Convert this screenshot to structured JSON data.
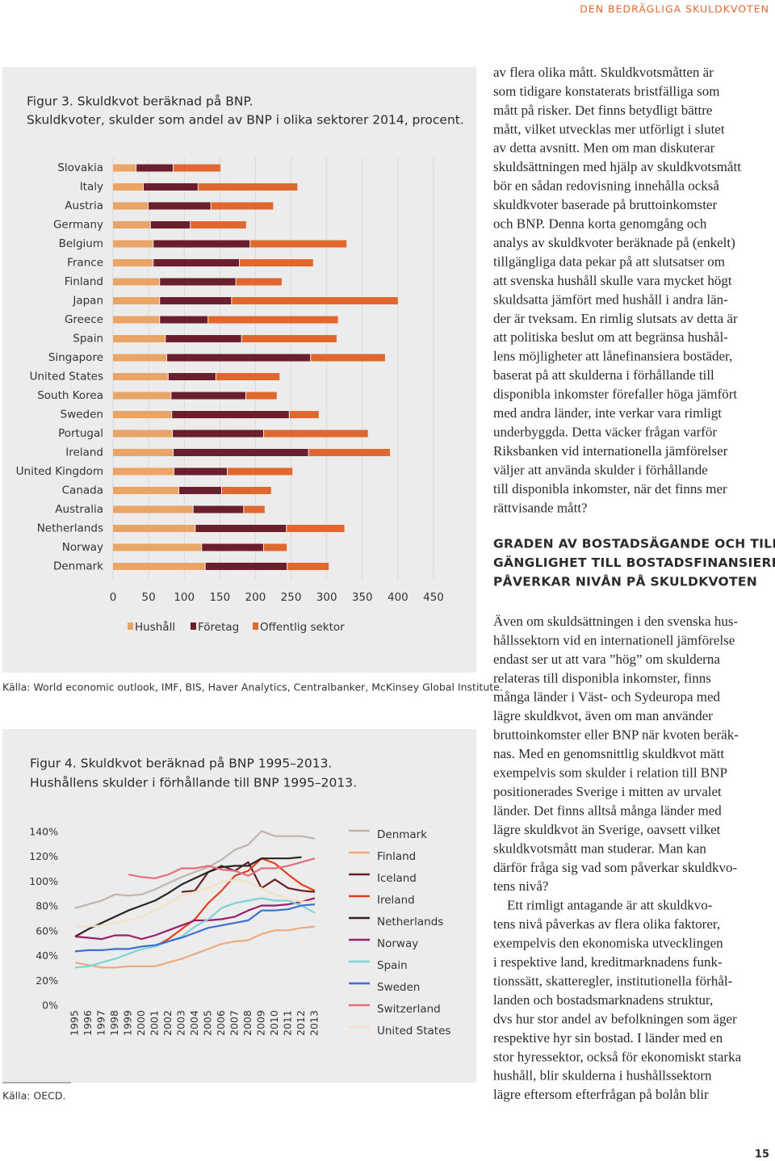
{
  "header": "DEN BEDRÄGLIGA SKULDKVOTEN",
  "page_number": "15",
  "chart_data": [
    {
      "type": "bar",
      "orientation": "horizontal",
      "stacked": true,
      "grid": true,
      "legend": "bottom",
      "title": "Figur 3. Skuldkvot beräknad på BNP.",
      "subtitle": "Skuldkvoter, skulder som andel av BNP i olika sektorer 2014, procent.",
      "source": "Källa: World economic outlook, IMF, BIS, Haver Analytics, Centralbanker, McKinsey Global Institute.",
      "categories": [
        "Slovakia",
        "Italy",
        "Austria",
        "Germany",
        "Belgium",
        "France",
        "Finland",
        "Japan",
        "Greece",
        "Spain",
        "Singapore",
        "United States",
        "South Korea",
        "Sweden",
        "Portugal",
        "Ireland",
        "United Kingdom",
        "Canada",
        "Australia",
        "Netherlands",
        "Norway",
        "Denmark"
      ],
      "series": [
        {
          "name": "Hushåll",
          "color": "#e9a466",
          "values": [
            33,
            43,
            50,
            53,
            57,
            57,
            66,
            66,
            66,
            74,
            76,
            78,
            82,
            83,
            84,
            85,
            86,
            93,
            113,
            116,
            125,
            130
          ]
        },
        {
          "name": "Företag",
          "color": "#6b1e2b",
          "values": [
            52,
            77,
            88,
            56,
            136,
            121,
            107,
            101,
            68,
            107,
            202,
            67,
            105,
            165,
            128,
            190,
            75,
            60,
            71,
            128,
            87,
            115
          ]
        },
        {
          "name": "Offentlig sektor",
          "color": "#e0682f",
          "values": [
            67,
            140,
            88,
            79,
            136,
            104,
            65,
            234,
            183,
            134,
            105,
            90,
            44,
            42,
            147,
            115,
            92,
            70,
            30,
            82,
            33,
            59
          ]
        }
      ],
      "xlim": [
        0,
        450
      ],
      "xticks": [
        0,
        50,
        100,
        150,
        200,
        250,
        300,
        350,
        400,
        450
      ]
    },
    {
      "type": "line",
      "grid": false,
      "legend": "right",
      "title": "Figur 4. Skuldkvot beräknad på BNP 1995–2013.",
      "subtitle": "Hushållens skulder i förhållande till BNP 1995–2013.",
      "source": "Källa: OECD.",
      "categories": [
        "1995",
        "1996",
        "1997",
        "1998",
        "1999",
        "2000",
        "2001",
        "2002",
        "2003",
        "2004",
        "2005",
        "2006",
        "2007",
        "2008",
        "2009",
        "2010",
        "2011",
        "2012",
        "2013"
      ],
      "series": [
        {
          "name": "Denmark",
          "color": "#bfb5ae",
          "values": [
            79,
            82,
            85,
            90,
            89,
            90,
            94,
            99,
            104,
            108,
            112,
            118,
            126,
            130,
            141,
            137,
            137,
            137,
            135
          ]
        },
        {
          "name": "Finland",
          "color": "#f0a97c",
          "values": [
            35,
            33,
            31,
            31,
            32,
            32,
            32,
            35,
            38,
            42,
            46,
            50,
            52,
            53,
            58,
            61,
            61,
            63,
            64
          ]
        },
        {
          "name": "Iceland",
          "color": "#6b1f2a",
          "values": [
            null,
            null,
            null,
            null,
            null,
            null,
            null,
            null,
            92,
            93,
            108,
            113,
            109,
            116,
            95,
            102,
            95,
            93,
            92
          ]
        },
        {
          "name": "Ireland",
          "color": "#e2401c",
          "values": [
            null,
            null,
            null,
            null,
            null,
            null,
            48,
            54,
            62,
            70,
            83,
            93,
            105,
            109,
            119,
            115,
            106,
            98,
            93
          ]
        },
        {
          "name": "Netherlands",
          "color": "#2b2420",
          "values": [
            56,
            62,
            67,
            72,
            77,
            81,
            85,
            91,
            98,
            103,
            108,
            112,
            113,
            113,
            119,
            119,
            119,
            120,
            null
          ]
        },
        {
          "name": "Norway",
          "color": "#9a1f6a",
          "values": [
            56,
            55,
            54,
            57,
            57,
            54,
            57,
            61,
            65,
            69,
            69,
            70,
            72,
            77,
            81,
            81,
            82,
            84,
            87
          ]
        },
        {
          "name": "Spain",
          "color": "#7fd3d6",
          "values": [
            31,
            32,
            35,
            38,
            42,
            46,
            48,
            52,
            56,
            64,
            70,
            79,
            83,
            85,
            87,
            85,
            85,
            81,
            75
          ]
        },
        {
          "name": "Sweden",
          "color": "#3d6fd1",
          "values": [
            44,
            45,
            45,
            46,
            46,
            48,
            49,
            52,
            55,
            59,
            63,
            65,
            67,
            69,
            77,
            77,
            78,
            81,
            82
          ]
        },
        {
          "name": "Switzerland",
          "color": "#e3707c",
          "values": [
            null,
            null,
            null,
            null,
            106,
            104,
            103,
            106,
            111,
            111,
            113,
            110,
            109,
            105,
            111,
            111,
            113,
            116,
            119
          ]
        },
        {
          "name": "United States",
          "color": "#f3e1c6",
          "values": [
            64,
            64,
            65,
            67,
            69,
            72,
            77,
            83,
            89,
            92,
            95,
            100,
            102,
            100,
            95,
            90,
            87,
            84,
            84
          ]
        }
      ],
      "ylim": [
        0,
        145
      ],
      "yticks": [
        {
          "value": 0,
          "label": "0%"
        },
        {
          "value": 20,
          "label": "20%"
        },
        {
          "value": 40,
          "label": "40%"
        },
        {
          "value": 60,
          "label": "60%"
        },
        {
          "value": 80,
          "label": "80%"
        },
        {
          "value": 100,
          "label": "100%"
        },
        {
          "value": 120,
          "label": "120%"
        },
        {
          "value": 140,
          "label": "140%"
        }
      ]
    }
  ],
  "body": {
    "paragraph_1": [
      "av flera olika mått. Skuldkvotsmåtten är",
      "som tidigare konstaterats bristfälliga som",
      "mått på risker. Det finns betydligt bättre",
      "mått, vilket utvecklas mer utförligt i slutet",
      "av detta avsnitt. Men om man diskuterar",
      "skuldsättningen med hjälp av skuldkvotsmått",
      "bör en sådan redovisning innehålla också",
      "skuldkvoter baserade på bruttoinkomster",
      "och BNP. Denna korta genomgång och",
      "analys av skuldkvoter beräknade på (enkelt)",
      "tillgängliga data pekar på att slutsatser om",
      "att svenska hushåll skulle vara mycket högt",
      "skuldsatta jämfört med hushåll i andra län-",
      "der är tveksam. En rimlig slutsats av detta är",
      "att politiska beslut om att begränsa hushål-",
      "lens möjligheter att lånefinansiera bostäder,",
      "baserat på att skulderna i förhållande till",
      "disponibla inkomster förefaller höga jämfört",
      "med andra länder, inte verkar vara rimligt",
      "underbyggda. Detta väcker frågan varför",
      "Riksbanken vid internationella jämförelser",
      "väljer att använda skulder i förhållande",
      "till disponibla inkomster, när det finns mer",
      "rättvisande mått?"
    ],
    "heading": [
      "GRADEN AV BOSTADSÄGANDE OCH TILL-",
      "GÄNGLIGHET TILL BOSTADSFINANSIERING",
      "PÅVERKAR NIVÅN PÅ SKULDKVOTEN"
    ],
    "paragraph_2": [
      "Även om skuldsättningen i den svenska hus-",
      "hållssektorn vid en internationell jämförelse",
      "endast ser ut att vara ”hög” om skulderna",
      "relateras till disponibla inkomster, finns",
      "många länder i Väst- och Sydeuropa med",
      "lägre skuldkvot, även om man använder",
      "bruttoinkomster eller BNP när kvoten beräk-",
      "nas. Med en genomsnittlig skuldkvot mätt",
      "exempelvis som skulder i relation till BNP",
      "positionerades Sverige i mitten av urvalet",
      "länder. Det finns alltså många länder med",
      "lägre skuldkvot än Sverige, oavsett vilket",
      "skuldkvotsmått man studerar. Man kan",
      "därför fråga sig vad som påverkar skuldkvo-",
      "tens nivå?"
    ],
    "paragraph_3": [
      "Ett rimligt antagande är att skuldkvo-",
      "tens nivå påverkas av flera olika faktorer,",
      "exempelvis den ekonomiska utvecklingen",
      "i respektive land, kreditmarknadens funk-",
      "tionssätt, skatteregler, institutionella förhål-",
      "landen och bostadsmarknadens struktur,",
      "dvs hur stor andel av befolkningen som äger",
      "respektive hyr sin bostad. I länder med en",
      "stor hyressektor, också för ekonomiskt starka",
      "hushåll, blir skulderna i hushållssektorn",
      "lägre eftersom efterfrågan på bolån blir"
    ]
  }
}
